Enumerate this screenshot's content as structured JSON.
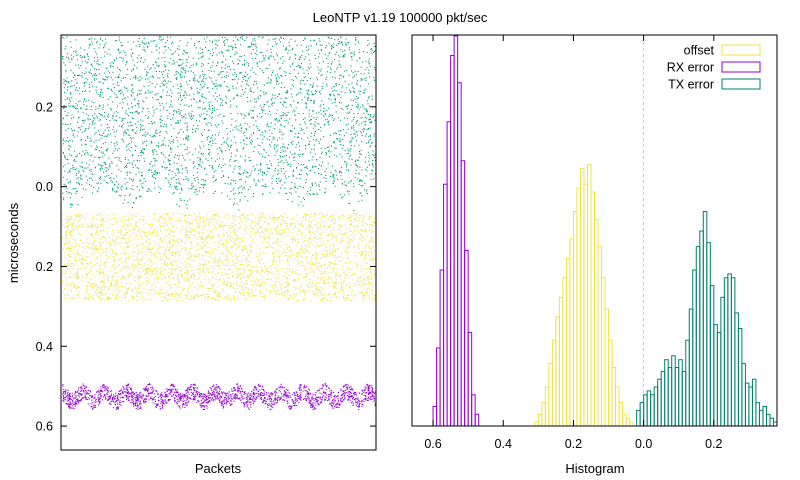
{
  "title": "LeoNTP v1.19 100000 pkt/sec",
  "chart_data": [
    {
      "type": "scatter",
      "xlabel": "Packets",
      "ylabel": "microseconds",
      "y_ticks": [
        {
          "value": -0.2,
          "label": "0.2"
        },
        {
          "value": 0.0,
          "label": "0.0"
        },
        {
          "value": 0.2,
          "label": "0.2"
        },
        {
          "value": 0.4,
          "label": "0.4"
        },
        {
          "value": 0.6,
          "label": "0.6"
        }
      ],
      "ylim": [
        -0.38,
        0.66
      ],
      "y_direction": "downward",
      "series": [
        {
          "color": "#009e73",
          "center": -0.18,
          "spread": 0.2
        },
        {
          "color": "#f0e442",
          "center": 0.175,
          "spread": 0.11
        },
        {
          "color": "#9400d3",
          "center": 0.525,
          "spread": 0.03
        }
      ]
    },
    {
      "type": "histogram",
      "xlabel": "Histogram",
      "x_ticks": [
        {
          "value": -0.6,
          "label": "0.6"
        },
        {
          "value": -0.4,
          "label": "0.4"
        },
        {
          "value": -0.2,
          "label": "0.2"
        },
        {
          "value": 0.0,
          "label": "0.0"
        },
        {
          "value": 0.2,
          "label": "0.2"
        }
      ],
      "xlim": [
        -0.66,
        0.38
      ],
      "zero_line": true,
      "legend_position": "top-right",
      "series": [
        {
          "name": "offset",
          "color": "#f0e442",
          "bins": [
            [
              -0.305,
              0.01
            ],
            [
              -0.295,
              0.03
            ],
            [
              -0.285,
              0.06
            ],
            [
              -0.275,
              0.1
            ],
            [
              -0.265,
              0.16
            ],
            [
              -0.255,
              0.22
            ],
            [
              -0.245,
              0.28
            ],
            [
              -0.235,
              0.33
            ],
            [
              -0.225,
              0.38
            ],
            [
              -0.215,
              0.43
            ],
            [
              -0.205,
              0.48
            ],
            [
              -0.195,
              0.55
            ],
            [
              -0.185,
              0.61
            ],
            [
              -0.175,
              0.66
            ],
            [
              -0.165,
              0.62
            ],
            [
              -0.155,
              0.67
            ],
            [
              -0.145,
              0.6
            ],
            [
              -0.135,
              0.53
            ],
            [
              -0.125,
              0.46
            ],
            [
              -0.115,
              0.38
            ],
            [
              -0.105,
              0.3
            ],
            [
              -0.095,
              0.22
            ],
            [
              -0.085,
              0.15
            ],
            [
              -0.075,
              0.1
            ],
            [
              -0.065,
              0.06
            ],
            [
              -0.055,
              0.03
            ],
            [
              -0.045,
              0.02
            ],
            [
              -0.035,
              0.01
            ]
          ]
        },
        {
          "name": "RX error",
          "color": "#9400d3",
          "bins": [
            [
              -0.595,
              0.05
            ],
            [
              -0.585,
              0.2
            ],
            [
              -0.575,
              0.4
            ],
            [
              -0.565,
              0.62
            ],
            [
              -0.555,
              0.78
            ],
            [
              -0.545,
              0.95
            ],
            [
              -0.535,
              1.0
            ],
            [
              -0.525,
              0.88
            ],
            [
              -0.515,
              0.68
            ],
            [
              -0.505,
              0.45
            ],
            [
              -0.495,
              0.24
            ],
            [
              -0.485,
              0.08
            ],
            [
              -0.475,
              0.03
            ]
          ]
        },
        {
          "name": "TX error",
          "color": "#00836a",
          "bins": [
            [
              -0.015,
              0.04
            ],
            [
              -0.005,
              0.06
            ],
            [
              0.005,
              0.08
            ],
            [
              0.015,
              0.09
            ],
            [
              0.025,
              0.08
            ],
            [
              0.035,
              0.1
            ],
            [
              0.045,
              0.12
            ],
            [
              0.055,
              0.14
            ],
            [
              0.065,
              0.17
            ],
            [
              0.075,
              0.15
            ],
            [
              0.085,
              0.18
            ],
            [
              0.095,
              0.15
            ],
            [
              0.105,
              0.17
            ],
            [
              0.115,
              0.14
            ],
            [
              0.125,
              0.22
            ],
            [
              0.135,
              0.3
            ],
            [
              0.145,
              0.4
            ],
            [
              0.155,
              0.46
            ],
            [
              0.165,
              0.5
            ],
            [
              0.175,
              0.55
            ],
            [
              0.185,
              0.47
            ],
            [
              0.195,
              0.36
            ],
            [
              0.205,
              0.26
            ],
            [
              0.215,
              0.24
            ],
            [
              0.225,
              0.33
            ],
            [
              0.235,
              0.38
            ],
            [
              0.245,
              0.39
            ],
            [
              0.255,
              0.38
            ],
            [
              0.265,
              0.29
            ],
            [
              0.275,
              0.25
            ],
            [
              0.285,
              0.16
            ],
            [
              0.295,
              0.11
            ],
            [
              0.305,
              0.1
            ],
            [
              0.315,
              0.12
            ],
            [
              0.325,
              0.06
            ],
            [
              0.335,
              0.04
            ],
            [
              0.345,
              0.05
            ],
            [
              0.355,
              0.03
            ],
            [
              0.365,
              0.02
            ],
            [
              0.375,
              0.01
            ]
          ]
        }
      ]
    }
  ]
}
